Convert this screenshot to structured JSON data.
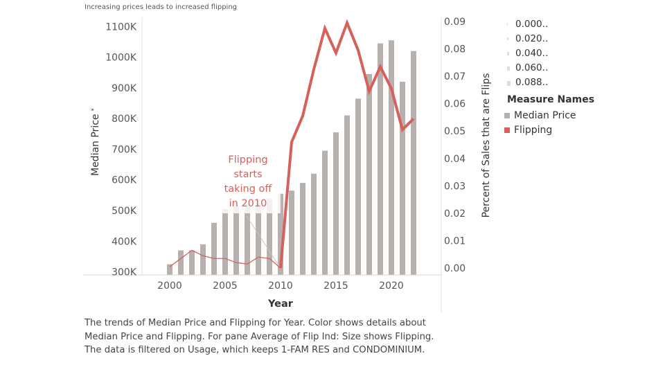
{
  "title": "Increasing prices leads to increased flipping",
  "caption": "The trends of Median Price and Flipping for Year.  Color shows details about Median Price and Flipping.  For pane Average of Flip Ind:  Size shows Flipping. The data is filtered on Usage, which keeps 1-FAM RES and CONDOMINIUM.",
  "legend": {
    "size_items": [
      "0.000..",
      "0.020..",
      "0.040..",
      "0.060..",
      "0.088.."
    ],
    "title": "Measure Names",
    "items": [
      {
        "label": "Median Price",
        "color": "#b8b0ad"
      },
      {
        "label": "Flipping",
        "color": "#d5605c"
      }
    ]
  },
  "chart_data": {
    "type": "bar",
    "title": "Increasing prices leads to increased flipping",
    "xlabel": "Year",
    "ylabel": "Median Price",
    "ylabel_marker": "*",
    "y2label": "Percent of Sales that are Flips",
    "xlim": [
      1997.5,
      2024.5
    ],
    "ylim": [
      290000,
      1130000
    ],
    "y2lim": [
      -0.0025,
      0.0915
    ],
    "x_ticks": [
      2000,
      2005,
      2010,
      2015,
      2020
    ],
    "y_ticks": [
      300000,
      400000,
      500000,
      600000,
      700000,
      800000,
      900000,
      1000000,
      1100000
    ],
    "y_tick_labels": [
      "300K",
      "400K",
      "500K",
      "600K",
      "700K",
      "800K",
      "900K",
      "1000K",
      "1100K"
    ],
    "y2_ticks": [
      0.0,
      0.01,
      0.02,
      0.03,
      0.04,
      0.05,
      0.06,
      0.07,
      0.08,
      0.09
    ],
    "y2_tick_labels": [
      "0.00",
      "0.01",
      "0.02",
      "0.03",
      "0.04",
      "0.05",
      "0.06",
      "0.07",
      "0.08",
      "0.09"
    ],
    "grid": false,
    "legend_position": "right",
    "series": [
      {
        "name": "Median Price",
        "type": "bar",
        "color": "#b8b0ad",
        "x": [
          2000,
          2001,
          2002,
          2003,
          2004,
          2005,
          2006,
          2007,
          2008,
          2009,
          2010,
          2011,
          2012,
          2013,
          2014,
          2015,
          2016,
          2017,
          2018,
          2019,
          2020,
          2021,
          2022
        ],
        "values": [
          325000,
          370000,
          370000,
          390000,
          460000,
          505000,
          515000,
          520000,
          525000,
          540000,
          555000,
          565000,
          590000,
          620000,
          695000,
          755000,
          810000,
          865000,
          945000,
          1045000,
          1055000,
          920000,
          1020000
        ]
      },
      {
        "name": "Flipping",
        "type": "line",
        "color": "#d5605c",
        "x": [
          2000,
          2001,
          2002,
          2003,
          2004,
          2005,
          2006,
          2007,
          2008,
          2009,
          2010,
          2011,
          2012,
          2013,
          2014,
          2015,
          2016,
          2017,
          2018,
          2019,
          2020,
          2021,
          2022
        ],
        "values": [
          0.0005,
          0.0035,
          0.0065,
          0.0045,
          0.0035,
          0.0035,
          0.002,
          0.0015,
          0.004,
          0.0035,
          0.0,
          0.046,
          0.0555,
          0.0725,
          0.0875,
          0.0785,
          0.0895,
          0.0795,
          0.0645,
          0.0735,
          0.0655,
          0.0505,
          0.0545
        ]
      }
    ],
    "annotations": [
      {
        "text": "Flipping starts taking off in 2010",
        "lines": [
          "Flipping",
          "starts",
          "taking off",
          "in 2010"
        ],
        "x": 2010,
        "y2": 0.0,
        "color": "#d5605c"
      }
    ]
  }
}
